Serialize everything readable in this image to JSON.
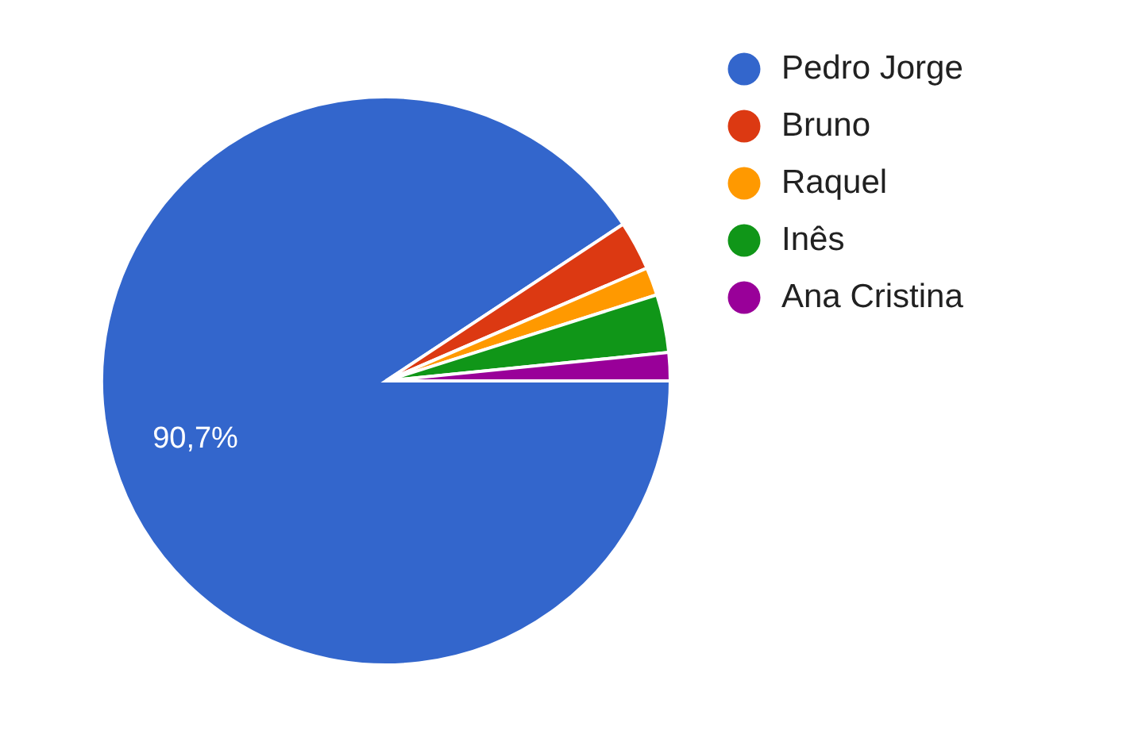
{
  "chart_data": {
    "type": "pie",
    "categories": [
      "Pedro Jorge",
      "Bruno",
      "Raquel",
      "Inês",
      "Ana Cristina"
    ],
    "values": [
      90.7,
      2.8,
      1.6,
      3.3,
      1.6
    ],
    "colors": [
      "#3366cc",
      "#dc3912",
      "#ff9900",
      "#109618",
      "#990099"
    ],
    "value_labels": [
      "90,7%",
      null,
      null,
      null,
      null
    ],
    "legend": "top right"
  }
}
